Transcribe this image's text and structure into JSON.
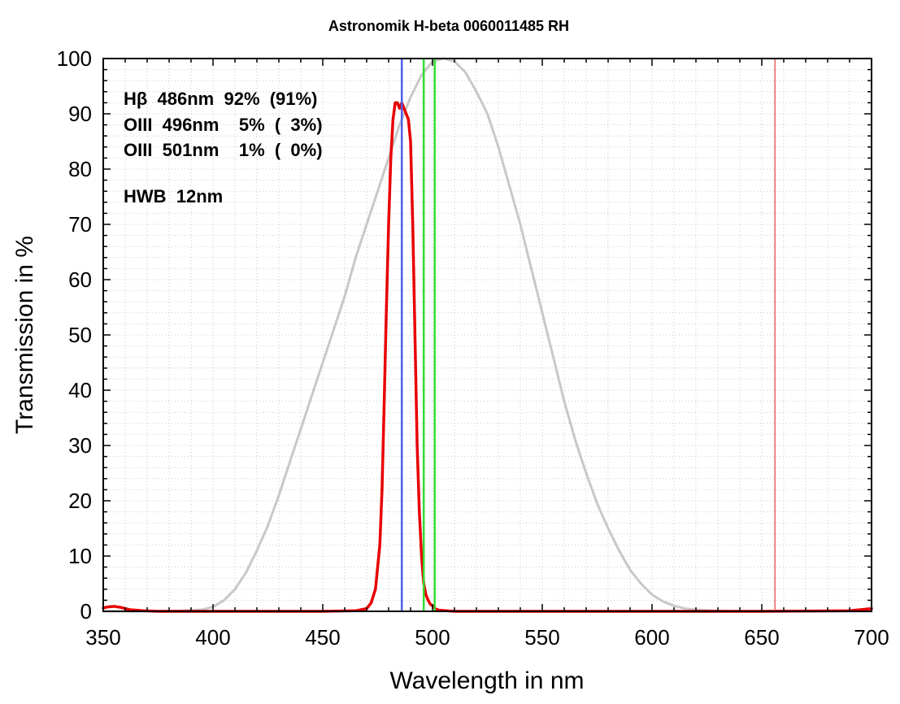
{
  "chart_data": {
    "type": "line",
    "title": "Astronomik H-beta 0060011485 RH",
    "xlabel": "Wavelength in nm",
    "ylabel": "Transmission in %",
    "xlim": [
      350,
      700
    ],
    "ylim": [
      0,
      100
    ],
    "x_ticks": [
      "350",
      "400",
      "450",
      "500",
      "550",
      "600",
      "650",
      "700"
    ],
    "y_ticks": [
      "0",
      "10",
      "20",
      "30",
      "40",
      "50",
      "60",
      "70",
      "80",
      "90",
      "100"
    ],
    "grid": true,
    "annotations": [
      "Hβ  486nm  92%  (91%)",
      "OIII  496nm    5%  (  3%)",
      "OIII  501nm    1%  (  0%)",
      "HWB  12nm"
    ],
    "reference_lines": [
      {
        "x": 486,
        "color": "#4f5fe8"
      },
      {
        "x": 496,
        "color": "#33dd33"
      },
      {
        "x": 501,
        "color": "#33dd33"
      },
      {
        "x": 656,
        "color": "#e86060"
      }
    ],
    "series": [
      {
        "color": "#c8c8c8",
        "x": [
          350,
          370,
          385,
          395,
          400,
          405,
          410,
          415,
          420,
          425,
          430,
          435,
          440,
          445,
          450,
          455,
          460,
          465,
          470,
          475,
          480,
          485,
          490,
          495,
          500,
          505,
          510,
          515,
          520,
          525,
          530,
          535,
          540,
          545,
          550,
          555,
          560,
          565,
          570,
          575,
          580,
          585,
          590,
          595,
          600,
          605,
          610,
          615,
          620,
          630,
          640,
          650,
          670,
          700
        ],
        "y": [
          0,
          0,
          0.1,
          0.3,
          0.8,
          2,
          4,
          7,
          11,
          15.5,
          21,
          27,
          33,
          39,
          45,
          51,
          57,
          64,
          70,
          76,
          82,
          88,
          93,
          97,
          99.5,
          100,
          99.5,
          97.5,
          94,
          90,
          84,
          77,
          70,
          62,
          54,
          46,
          38,
          31,
          25,
          19.5,
          15,
          11,
          7.5,
          5,
          3,
          1.8,
          1,
          0.5,
          0.3,
          0.1,
          0,
          0,
          0,
          0
        ]
      },
      {
        "color": "#e80000",
        "x": [
          350,
          352,
          355,
          358,
          362,
          368,
          375,
          400,
          450,
          465,
          470,
          472,
          474,
          476,
          477,
          478,
          479,
          480,
          481,
          482,
          483,
          484,
          485,
          486,
          487,
          488,
          489,
          490,
          491,
          492,
          493,
          494,
          495,
          496,
          497,
          498,
          499,
          500,
          501,
          503,
          510,
          550,
          650,
          690,
          695,
          700
        ],
        "y": [
          0.6,
          0.8,
          0.9,
          0.7,
          0.3,
          0.1,
          0,
          0,
          0,
          0.1,
          0.5,
          1.5,
          4,
          12,
          22,
          38,
          55,
          70,
          82,
          89,
          92,
          92,
          91,
          92,
          91,
          90,
          89,
          85,
          70,
          50,
          30,
          18,
          10,
          5,
          3,
          2,
          1.3,
          1,
          0.5,
          0.2,
          0,
          0,
          0,
          0.1,
          0.3,
          0.5
        ]
      }
    ]
  }
}
